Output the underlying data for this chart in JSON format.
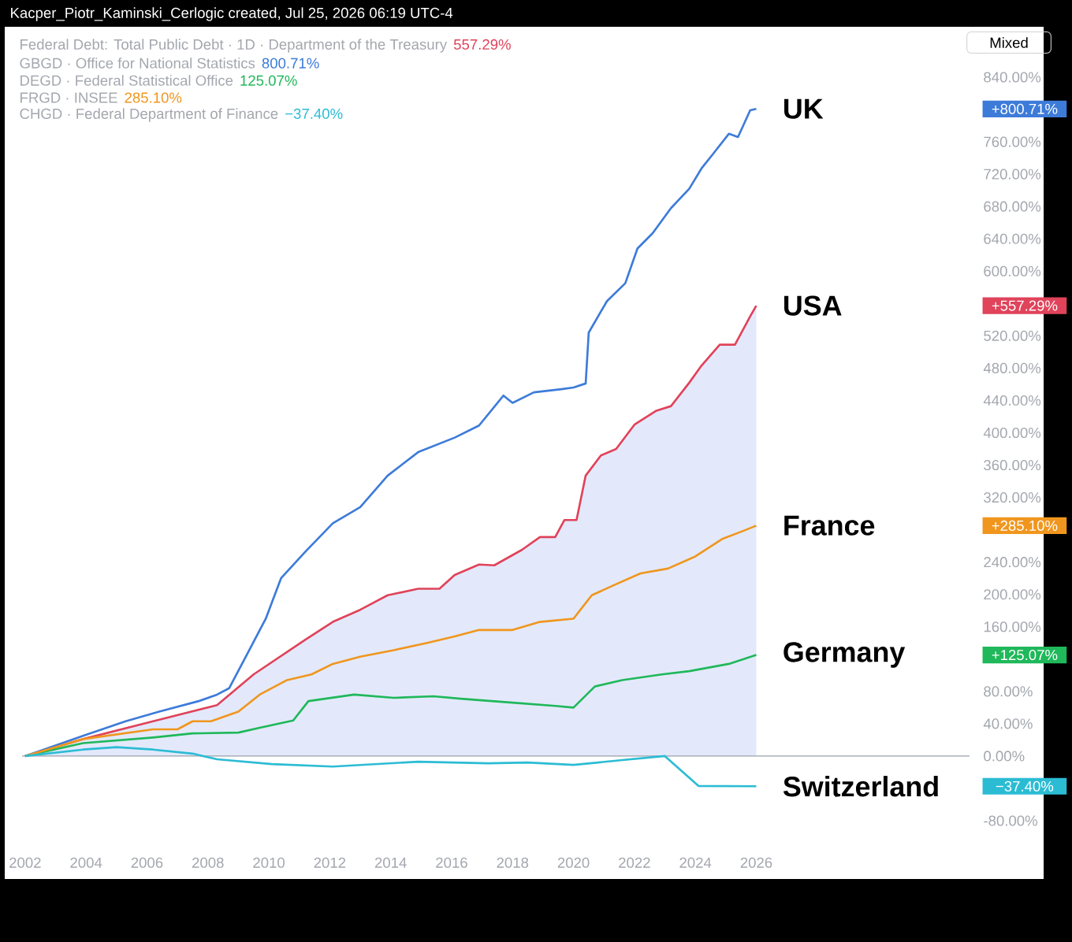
{
  "chart_data": {
    "type": "line",
    "xlim": [
      2001.9,
      2033
    ],
    "ylim": [
      -80,
      840
    ],
    "xticks": [
      2002,
      2004,
      2006,
      2008,
      2010,
      2012,
      2014,
      2016,
      2018,
      2020,
      2022,
      2024,
      2026
    ],
    "yticks": [
      {
        "value": -80,
        "label": "-80.00%"
      },
      {
        "value": 0,
        "label": "0.00%"
      },
      {
        "value": 40,
        "label": "40.00%"
      },
      {
        "value": 80,
        "label": "80.00%"
      },
      {
        "value": 160,
        "label": "160.00%"
      },
      {
        "value": 200,
        "label": "200.00%"
      },
      {
        "value": 240,
        "label": "240.00%"
      },
      {
        "value": 320,
        "label": "320.00%"
      },
      {
        "value": 360,
        "label": "360.00%"
      },
      {
        "value": 400,
        "label": "400.00%"
      },
      {
        "value": 440,
        "label": "440.00%"
      },
      {
        "value": 480,
        "label": "480.00%"
      },
      {
        "value": 520,
        "label": "520.00%"
      },
      {
        "value": 600,
        "label": "600.00%"
      },
      {
        "value": 640,
        "label": "640.00%"
      },
      {
        "value": 680,
        "label": "680.00%"
      },
      {
        "value": 720,
        "label": "720.00%"
      },
      {
        "value": 760,
        "label": "760.00%"
      },
      {
        "value": 840,
        "label": "840.00%"
      }
    ],
    "ref_lines": [
      {
        "axis": "y",
        "value": 0,
        "color": "#9aa0a8"
      }
    ],
    "series": [
      {
        "name": "USA",
        "type": "area",
        "color": "#e0435a",
        "x": [
          2002.0,
          2003.9,
          2006.2,
          2008.3,
          2009.5,
          2011.2,
          2012.1,
          2013.0,
          2013.9,
          2014.9,
          2015.6,
          2016.1,
          2016.9,
          2017.4,
          2018.3,
          2018.9,
          2019.4,
          2019.7,
          2020.1,
          2020.4,
          2020.9,
          2021.4,
          2022.0,
          2022.7,
          2023.2,
          2023.8,
          2024.2,
          2024.8,
          2025.3,
          2025.8,
          2026.0
        ],
        "values": [
          0,
          21,
          43,
          63,
          101,
          144,
          166,
          181,
          199,
          207,
          207,
          224,
          237,
          236,
          255,
          271,
          271,
          292,
          292,
          347,
          372,
          380,
          410,
          427,
          433,
          462,
          483,
          509,
          509,
          544,
          557.29
        ]
      },
      {
        "name": "UK",
        "color": "#3d7bd9",
        "x": [
          2002.0,
          2003.9,
          2005.3,
          2006.4,
          2007.7,
          2008.3,
          2008.7,
          2009.3,
          2009.9,
          2010.4,
          2011.2,
          2012.1,
          2013.0,
          2013.9,
          2014.9,
          2016.1,
          2016.9,
          2017.7,
          2018.0,
          2018.7,
          2019.6,
          2020.0,
          2020.4,
          2020.5,
          2021.1,
          2021.7,
          2022.1,
          2022.6,
          2023.2,
          2023.8,
          2024.2,
          2024.6,
          2025.1,
          2025.4,
          2025.8,
          2026.0
        ],
        "values": [
          0,
          25,
          43,
          55,
          68,
          76,
          84,
          127,
          170,
          220,
          253,
          288,
          308,
          347,
          376,
          394,
          409,
          446,
          437,
          450,
          454,
          456,
          461,
          524,
          563,
          585,
          628,
          647,
          678,
          702,
          727,
          746,
          770,
          766,
          799,
          800.71
        ]
      },
      {
        "name": "Germany",
        "color": "#1fb85a",
        "x": [
          2002.0,
          2003.9,
          2006.2,
          2007.5,
          2009.0,
          2009.7,
          2010.8,
          2011.3,
          2012.8,
          2014.1,
          2015.4,
          2016.3,
          2018.0,
          2019.4,
          2020.0,
          2020.7,
          2021.6,
          2022.9,
          2023.8,
          2025.1,
          2026.0
        ],
        "values": [
          0,
          16,
          23,
          28,
          29,
          35,
          44,
          68,
          76,
          72,
          74,
          71,
          66,
          62,
          60,
          86,
          94,
          101,
          105,
          114,
          125.07
        ]
      },
      {
        "name": "France",
        "color": "#f0961e",
        "x": [
          2002.0,
          2003.9,
          2006.2,
          2007.0,
          2007.5,
          2008.1,
          2009.0,
          2009.7,
          2010.6,
          2011.4,
          2012.1,
          2013.0,
          2014.1,
          2015.2,
          2016.1,
          2016.9,
          2018.0,
          2018.9,
          2020.0,
          2020.6,
          2021.3,
          2022.2,
          2023.1,
          2024.0,
          2024.9,
          2025.6,
          2026.0
        ],
        "values": [
          0,
          21,
          33,
          33,
          43,
          43,
          55,
          76,
          94,
          101,
          114,
          123,
          131,
          140,
          148,
          156,
          156,
          166,
          170,
          199,
          211,
          226,
          232,
          247,
          269,
          279,
          285.1
        ]
      },
      {
        "name": "Switzerland",
        "color": "#2bbcd4",
        "x": [
          2002.0,
          2003.9,
          2005.0,
          2006.2,
          2007.5,
          2008.3,
          2010.1,
          2012.1,
          2014.9,
          2017.2,
          2018.5,
          2020.0,
          2021.6,
          2023.0,
          2024.1,
          2026.0
        ],
        "values": [
          0,
          8,
          11,
          8,
          3,
          -4,
          -10,
          -13,
          -7,
          -9,
          -8,
          -11,
          -5,
          0,
          -37,
          -37.4
        ]
      }
    ],
    "annotations": [
      "Kacper_Piotr_Kaminski_Cerlogic created, Jul 25, 2026 06:19 UTC-4",
      "Federal Debt: Total Public Debt · 1D · Department of the Treasury",
      "GBGD · Office for National Statistics",
      "DEGD · Federal Statistical Office",
      "FRGD · INSEE",
      "CHGD · Federal Department of Finance",
      "557.29%",
      "800.71%",
      "125.07%",
      "285.10%",
      "−37.40%",
      "+557.29%",
      "+800.71%",
      "+125.07%",
      "+285.10%",
      "−37.40%",
      "Mixed"
    ]
  }
}
